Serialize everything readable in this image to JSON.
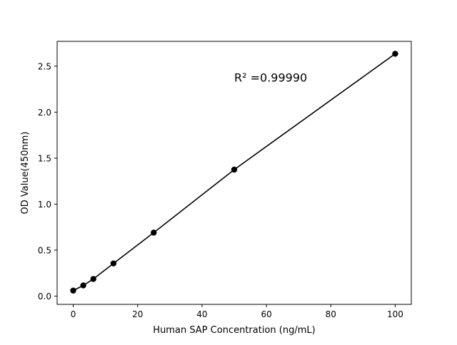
{
  "chart_data": {
    "type": "line",
    "title": "",
    "xlabel": "Human SAP Concentration (ng/mL)",
    "ylabel": "OD Value(450nm)",
    "xlim": [
      -5,
      105
    ],
    "ylim": [
      -0.09,
      2.77
    ],
    "xticks": [
      0,
      20,
      40,
      60,
      80,
      100
    ],
    "xtick_labels": [
      "0",
      "20",
      "40",
      "60",
      "80",
      "100"
    ],
    "yticks": [
      0.0,
      0.5,
      1.0,
      1.5,
      2.0,
      2.5
    ],
    "ytick_labels": [
      "0.0",
      "0.5",
      "1.0",
      "1.5",
      "2.0",
      "2.5"
    ],
    "grid": false,
    "series": [
      {
        "x": [
          0,
          3.125,
          6.25,
          12.5,
          25,
          50,
          100
        ],
        "y": [
          0.06,
          0.116,
          0.186,
          0.355,
          0.69,
          1.375,
          2.635
        ],
        "color": "#000000",
        "marker": "circle"
      }
    ],
    "annotations": [
      {
        "text": "R² =0.99990",
        "x": 50,
        "y": 2.38
      }
    ]
  }
}
